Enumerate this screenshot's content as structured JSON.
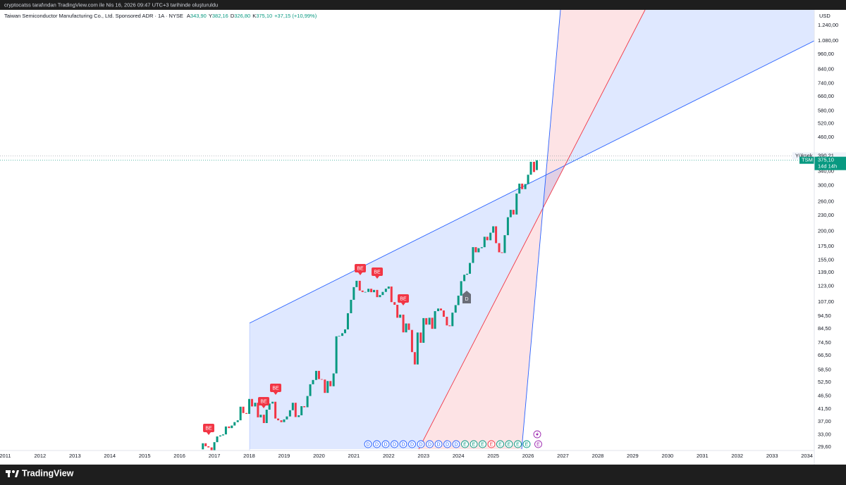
{
  "page": {
    "attribution": "cryptocatss tarafından TradingView.com ile Nis 16, 2026 09:47 UTC+3 tarihinde oluşturuldu",
    "brand": "TradingView",
    "currency": "USD",
    "symbol_title": "Taiwan Semiconductor Manufacturing Co., Ltd. Sponsored ADR · 1A · NYSE",
    "ohlc": [
      {
        "key": "A",
        "value": "343,90"
      },
      {
        "key": "Y",
        "value": "382,16"
      },
      {
        "key": "D",
        "value": "326,80"
      },
      {
        "key": "K",
        "value": "375,10"
      }
    ],
    "change": "+37,15 (+10,99%)",
    "price_labels": {
      "high_name": "Yüksek",
      "high": {
        "value": 390.21,
        "label": "390,21"
      },
      "symbol": "TSM",
      "last": {
        "value": 375.1,
        "label": "375,10"
      },
      "countdown": "14d 14h"
    },
    "badges": [
      "BE",
      "BE",
      "BE",
      "BE",
      "BE",
      "BE"
    ],
    "dividend_badge": "D",
    "event_circles": [
      "D",
      "D",
      "D",
      "D",
      "D",
      "D",
      "D",
      "D",
      "D",
      "D",
      "D",
      "E",
      "E",
      "E",
      "E",
      "E",
      "E",
      "E",
      "E",
      "E"
    ]
  },
  "chart_data": {
    "type": "candlestick",
    "log_scale": true,
    "grid": false,
    "up_color": "#089981",
    "down_color": "#f23645",
    "xlim": [
      2010.85,
      2034.21
    ],
    "xticks": [
      2011,
      2012,
      2013,
      2014,
      2015,
      2016,
      2017,
      2018,
      2019,
      2020,
      2021,
      2022,
      2023,
      2024,
      2025,
      2026,
      2027,
      2028,
      2029,
      2030,
      2031,
      2032,
      2033,
      2034
    ],
    "ylim": [
      28.7,
      1421
    ],
    "yticks": [
      {
        "value": 29.6,
        "label": "29,60"
      },
      {
        "value": 33,
        "label": "33,00"
      },
      {
        "value": 37,
        "label": "37,00"
      },
      {
        "value": 41.5,
        "label": "41,50"
      },
      {
        "value": 46.5,
        "label": "46,50"
      },
      {
        "value": 52.5,
        "label": "52,50"
      },
      {
        "value": 58.5,
        "label": "58,50"
      },
      {
        "value": 66.5,
        "label": "66,50"
      },
      {
        "value": 74.5,
        "label": "74,50"
      },
      {
        "value": 84.5,
        "label": "84,50"
      },
      {
        "value": 94.5,
        "label": "94,50"
      },
      {
        "value": 107,
        "label": "107,00"
      },
      {
        "value": 123,
        "label": "123,00"
      },
      {
        "value": 139,
        "label": "139,00"
      },
      {
        "value": 155,
        "label": "155,00"
      },
      {
        "value": 175,
        "label": "175,00"
      },
      {
        "value": 200,
        "label": "200,00"
      },
      {
        "value": 230,
        "label": "230,00"
      },
      {
        "value": 260,
        "label": "260,00"
      },
      {
        "value": 300,
        "label": "300,00"
      },
      {
        "value": 340,
        "label": "340,00"
      },
      {
        "value": 460,
        "label": "460,00"
      },
      {
        "value": 520,
        "label": "520,00"
      },
      {
        "value": 580,
        "label": "580,00"
      },
      {
        "value": 660,
        "label": "660,00"
      },
      {
        "value": 740,
        "label": "740,00"
      },
      {
        "value": 840,
        "label": "840,00"
      },
      {
        "value": 960,
        "label": "960,00"
      },
      {
        "value": 1080,
        "label": "1.080,00"
      },
      {
        "value": 1240,
        "label": "1.240,00"
      }
    ],
    "x": [
      2016.67,
      2016.75,
      2016.83,
      2016.92,
      2017.0,
      2017.08,
      2017.17,
      2017.25,
      2017.33,
      2017.42,
      2017.5,
      2017.58,
      2017.67,
      2017.75,
      2017.83,
      2017.92,
      2018.0,
      2018.08,
      2018.17,
      2018.25,
      2018.33,
      2018.42,
      2018.5,
      2018.58,
      2018.67,
      2018.75,
      2018.83,
      2018.92,
      2019.0,
      2019.08,
      2019.17,
      2019.25,
      2019.33,
      2019.42,
      2019.5,
      2019.58,
      2019.67,
      2019.75,
      2019.83,
      2019.92,
      2020.0,
      2020.08,
      2020.17,
      2020.25,
      2020.33,
      2020.42,
      2020.5,
      2020.58,
      2020.67,
      2020.75,
      2020.83,
      2020.92,
      2021.0,
      2021.08,
      2021.17,
      2021.25,
      2021.33,
      2021.42,
      2021.5,
      2021.58,
      2021.67,
      2021.75,
      2021.83,
      2021.92,
      2022.0,
      2022.08,
      2022.17,
      2022.25,
      2022.33,
      2022.42,
      2022.5,
      2022.58,
      2022.67,
      2022.75,
      2022.83,
      2022.92,
      2023.0,
      2023.08,
      2023.17,
      2023.25,
      2023.33,
      2023.42,
      2023.5,
      2023.58,
      2023.67,
      2023.75,
      2023.83,
      2023.92,
      2024.0,
      2024.08,
      2024.17,
      2024.25,
      2024.33,
      2024.42,
      2024.5,
      2024.58,
      2024.67,
      2024.75,
      2024.83,
      2024.92,
      2025.0,
      2025.08,
      2025.17,
      2025.25,
      2025.33,
      2025.42,
      2025.5,
      2025.58,
      2025.67,
      2025.75,
      2025.83,
      2025.92,
      2026.0,
      2026.08,
      2026.17,
      2026.25
    ],
    "open": [
      29.0,
      30.6,
      29.8,
      29.5,
      28.8,
      30.9,
      32.5,
      32.8,
      33.1,
      35.5,
      35.0,
      35.8,
      36.9,
      37.5,
      42.3,
      40.0,
      39.7,
      45.3,
      42.4,
      43.8,
      38.5,
      39.4,
      36.6,
      41.2,
      43.5,
      44.2,
      38.1,
      37.5,
      36.9,
      37.8,
      38.8,
      41.0,
      43.8,
      38.6,
      39.2,
      42.5,
      42.1,
      46.5,
      51.6,
      53.6,
      58.1,
      54.0,
      53.8,
      47.8,
      53.1,
      50.7,
      56.8,
      78.9,
      79.2,
      81.1,
      83.9,
      96.8,
      109.0,
      122.0,
      129.0,
      118.3,
      116.8,
      116.9,
      120.2,
      116.6,
      119.0,
      111.6,
      113.7,
      116.9,
      120.3,
      122.6,
      106.8,
      104.3,
      93.0,
      95.6,
      81.7,
      88.4,
      83.5,
      68.6,
      61.5,
      81.6,
      74.5,
      92.7,
      87.5,
      93.0,
      84.3,
      98.6,
      100.9,
      99.2,
      93.8,
      86.9,
      86.3,
      97.3,
      104.0,
      113.1,
      128.6,
      136.1,
      137.3,
      151.1,
      173.8,
      166.0,
      172.2,
      173.7,
      190.5,
      184.7,
      197.5,
      209.0,
      180.0,
      166.0,
      165.0,
      193.2,
      226.5,
      241.8,
      232.0,
      279.3,
      305.0,
      290.5,
      303.9,
      330.0,
      370.0,
      343.9
    ],
    "close": [
      30.6,
      29.8,
      29.5,
      28.8,
      30.9,
      32.5,
      32.8,
      33.1,
      35.5,
      35.0,
      35.8,
      36.9,
      37.5,
      42.3,
      40.0,
      39.7,
      45.3,
      42.4,
      43.8,
      38.5,
      39.4,
      36.6,
      41.2,
      43.5,
      44.2,
      38.1,
      37.5,
      36.9,
      37.8,
      38.8,
      41.0,
      43.8,
      38.6,
      39.2,
      42.5,
      42.1,
      46.5,
      51.6,
      53.6,
      58.1,
      54.0,
      53.8,
      47.8,
      53.1,
      50.7,
      56.8,
      78.9,
      79.2,
      81.1,
      83.9,
      96.8,
      109.0,
      122.0,
      129.0,
      118.3,
      116.8,
      116.9,
      120.2,
      116.6,
      119.0,
      111.6,
      113.7,
      116.9,
      120.3,
      122.6,
      106.8,
      104.3,
      93.0,
      95.6,
      81.7,
      88.4,
      83.5,
      68.6,
      61.5,
      81.6,
      74.5,
      92.7,
      87.5,
      93.0,
      84.3,
      98.6,
      100.9,
      99.2,
      93.8,
      86.9,
      86.3,
      97.3,
      104.0,
      113.1,
      128.6,
      136.1,
      137.3,
      151.1,
      173.8,
      166.0,
      172.2,
      173.7,
      190.5,
      184.7,
      197.5,
      209.0,
      180.0,
      166.0,
      165.0,
      193.2,
      226.5,
      241.8,
      232.0,
      279.3,
      305.0,
      290.5,
      303.9,
      330.0,
      370.0,
      337.95,
      375.1
    ]
  }
}
